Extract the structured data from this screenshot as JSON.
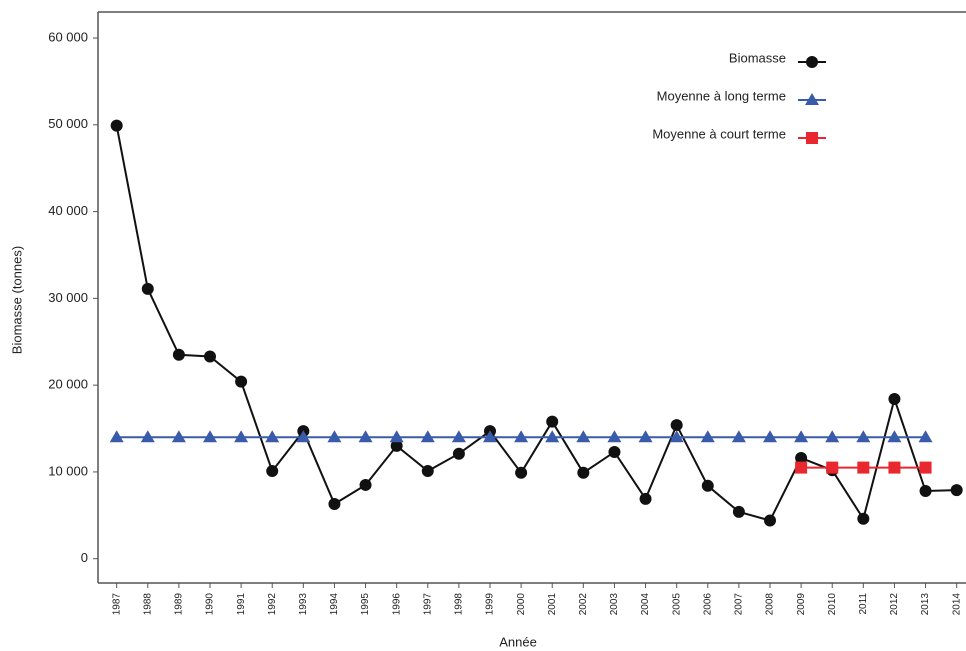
{
  "chart_data": {
    "type": "line",
    "x_label": "Année",
    "y_label": "Biomasse (tonnes)",
    "x": [
      1987,
      1988,
      1989,
      1990,
      1991,
      1992,
      1993,
      1994,
      1995,
      1996,
      1997,
      1998,
      1999,
      2000,
      2001,
      2002,
      2003,
      2004,
      2005,
      2006,
      2007,
      2008,
      2009,
      2010,
      2011,
      2012,
      2013,
      2014
    ],
    "series": [
      {
        "name": "Biomasse",
        "color": "#111111",
        "marker": "circle",
        "values": [
          49900,
          31100,
          23500,
          23300,
          20400,
          10100,
          14700,
          6300,
          8500,
          13000,
          10100,
          12100,
          14700,
          9900,
          15800,
          9900,
          12300,
          6900,
          15400,
          8400,
          5400,
          4400,
          11600,
          10200,
          4600,
          18400,
          7800,
          7900
        ]
      },
      {
        "name": "Moyenne à long terme",
        "color": "#3a5ba9",
        "marker": "triangle",
        "values": [
          14000,
          14000,
          14000,
          14000,
          14000,
          14000,
          14000,
          14000,
          14000,
          14000,
          14000,
          14000,
          14000,
          14000,
          14000,
          14000,
          14000,
          14000,
          14000,
          14000,
          14000,
          14000,
          14000,
          14000,
          14000,
          14000,
          14000,
          null
        ]
      },
      {
        "name": "Moyenne à court terme",
        "color": "#e8282e",
        "marker": "square",
        "values": [
          null,
          null,
          null,
          null,
          null,
          null,
          null,
          null,
          null,
          null,
          null,
          null,
          null,
          null,
          null,
          null,
          null,
          null,
          null,
          null,
          null,
          null,
          10500,
          10500,
          10500,
          10500,
          10500,
          null
        ]
      }
    ],
    "xlim": [
      1986.4,
      2014.3
    ],
    "xticks": [
      1987,
      1988,
      1989,
      1990,
      1991,
      1992,
      1993,
      1994,
      1995,
      1996,
      1997,
      1998,
      1999,
      2000,
      2001,
      2002,
      2003,
      2004,
      2005,
      2006,
      2007,
      2008,
      2009,
      2010,
      2011,
      2012,
      2013,
      2014
    ],
    "ylim": [
      -2800,
      63000
    ],
    "yticks": [
      0,
      {
        "value": 10000,
        "label": "10 000"
      },
      {
        "value": 20000,
        "label": "20 000"
      },
      {
        "value": 30000,
        "label": "30 000"
      },
      {
        "value": 40000,
        "label": "40 000"
      },
      {
        "value": 50000,
        "label": "50 000"
      },
      {
        "value": 60000,
        "label": "60 000"
      }
    ],
    "legend": "top-right"
  }
}
